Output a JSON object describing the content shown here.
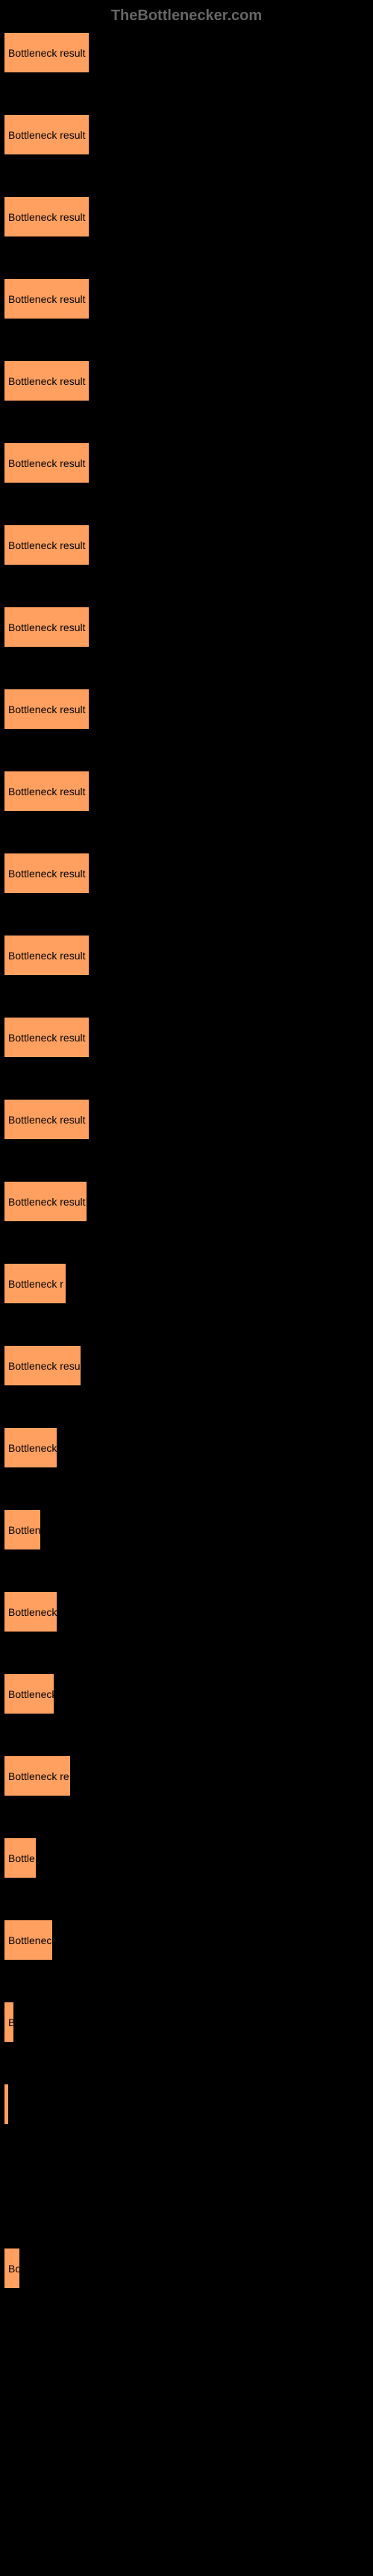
{
  "header": {
    "title": "TheBottlenecker.com"
  },
  "chart": {
    "type": "bar",
    "bar_color": "#ffa060",
    "background_color": "#000000",
    "text_color": "#000000",
    "header_color": "#666666",
    "max_width": 115,
    "bars": [
      {
        "label": "Bottleneck result",
        "width": 115
      },
      {
        "label": "Bottleneck result",
        "width": 115
      },
      {
        "label": "Bottleneck result",
        "width": 115
      },
      {
        "label": "Bottleneck result",
        "width": 115
      },
      {
        "label": "Bottleneck result",
        "width": 115
      },
      {
        "label": "Bottleneck result",
        "width": 115
      },
      {
        "label": "Bottleneck result",
        "width": 115
      },
      {
        "label": "Bottleneck result",
        "width": 115
      },
      {
        "label": "Bottleneck result",
        "width": 115
      },
      {
        "label": "Bottleneck result",
        "width": 115
      },
      {
        "label": "Bottleneck result",
        "width": 115
      },
      {
        "label": "Bottleneck result",
        "width": 115
      },
      {
        "label": "Bottleneck result",
        "width": 115
      },
      {
        "label": "Bottleneck result",
        "width": 115
      },
      {
        "label": "Bottleneck result",
        "width": 112
      },
      {
        "label": "Bottleneck r",
        "width": 84
      },
      {
        "label": "Bottleneck resu",
        "width": 104
      },
      {
        "label": "Bottleneck",
        "width": 72
      },
      {
        "label": "Bottlen",
        "width": 50
      },
      {
        "label": "Bottleneck",
        "width": 72
      },
      {
        "label": "Bottleneck",
        "width": 68
      },
      {
        "label": "Bottleneck re",
        "width": 90
      },
      {
        "label": "Bottle",
        "width": 44
      },
      {
        "label": "Bottlenec",
        "width": 66
      },
      {
        "label": "B",
        "width": 14
      },
      {
        "label": "",
        "width": 4
      },
      {
        "label": "",
        "width": 0
      },
      {
        "label": "Bo",
        "width": 22
      },
      {
        "label": "",
        "width": 0
      },
      {
        "label": "",
        "width": 0
      },
      {
        "label": "",
        "width": 0
      }
    ]
  }
}
